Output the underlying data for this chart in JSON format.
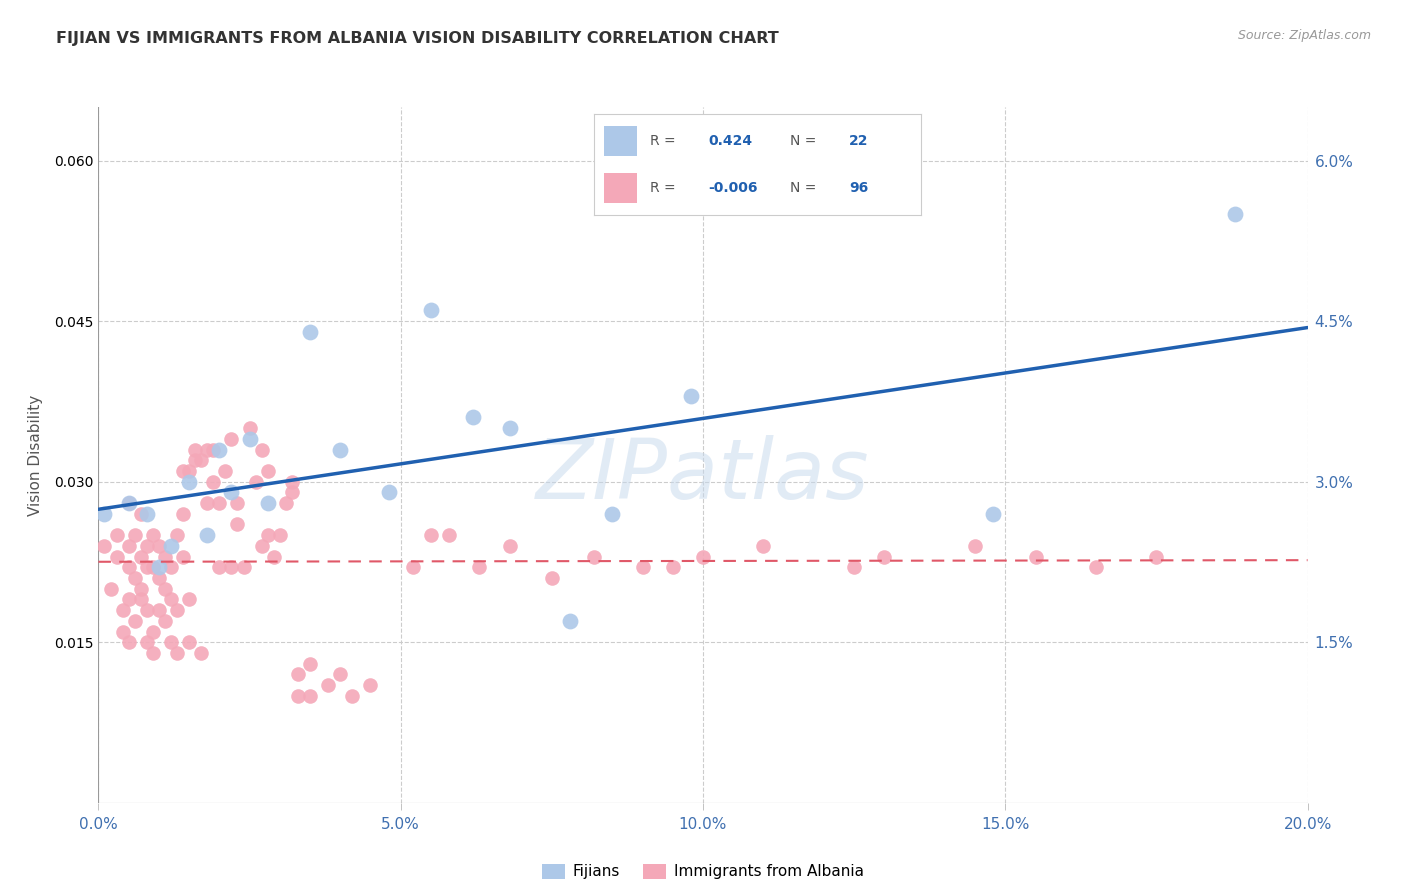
{
  "title": "FIJIAN VS IMMIGRANTS FROM ALBANIA VISION DISABILITY CORRELATION CHART",
  "source": "Source: ZipAtlas.com",
  "ylabel": "Vision Disability",
  "xlim": [
    0.0,
    0.2
  ],
  "ylim": [
    0.0,
    0.065
  ],
  "xticks": [
    0.0,
    0.05,
    0.1,
    0.15,
    0.2
  ],
  "yticks_right": [
    0.015,
    0.03,
    0.045,
    0.06
  ],
  "ytick_labels_right": [
    "1.5%",
    "3.0%",
    "4.5%",
    "6.0%"
  ],
  "xtick_labels": [
    "0.0%",
    "5.0%",
    "10.0%",
    "15.0%",
    "20.0%"
  ],
  "fijian_R": 0.424,
  "fijian_N": 22,
  "albania_R": -0.006,
  "albania_N": 96,
  "fijian_color": "#adc8e8",
  "albania_color": "#f4a8b8",
  "fijian_line_color": "#2060b0",
  "albania_line_color": "#e05868",
  "legend_label_fijian": "Fijians",
  "legend_label_albania": "Immigrants from Albania",
  "fijian_x": [
    0.001,
    0.005,
    0.008,
    0.01,
    0.012,
    0.015,
    0.018,
    0.02,
    0.022,
    0.025,
    0.028,
    0.035,
    0.04,
    0.048,
    0.055,
    0.062,
    0.068,
    0.078,
    0.085,
    0.098,
    0.148,
    0.188
  ],
  "fijian_y": [
    0.027,
    0.028,
    0.027,
    0.022,
    0.024,
    0.03,
    0.025,
    0.033,
    0.029,
    0.034,
    0.028,
    0.044,
    0.033,
    0.029,
    0.046,
    0.036,
    0.035,
    0.017,
    0.027,
    0.038,
    0.027,
    0.055
  ],
  "albania_x": [
    0.001,
    0.002,
    0.003,
    0.003,
    0.004,
    0.004,
    0.005,
    0.005,
    0.005,
    0.005,
    0.005,
    0.006,
    0.006,
    0.006,
    0.007,
    0.007,
    0.007,
    0.007,
    0.008,
    0.008,
    0.008,
    0.008,
    0.009,
    0.009,
    0.009,
    0.009,
    0.01,
    0.01,
    0.01,
    0.011,
    0.011,
    0.011,
    0.012,
    0.012,
    0.012,
    0.013,
    0.013,
    0.013,
    0.014,
    0.014,
    0.014,
    0.015,
    0.015,
    0.015,
    0.016,
    0.016,
    0.017,
    0.017,
    0.018,
    0.018,
    0.019,
    0.019,
    0.02,
    0.02,
    0.021,
    0.022,
    0.022,
    0.023,
    0.023,
    0.024,
    0.025,
    0.026,
    0.027,
    0.027,
    0.028,
    0.028,
    0.029,
    0.03,
    0.031,
    0.032,
    0.032,
    0.033,
    0.033,
    0.035,
    0.035,
    0.038,
    0.04,
    0.042,
    0.045,
    0.052,
    0.055,
    0.058,
    0.063,
    0.068,
    0.075,
    0.082,
    0.09,
    0.095,
    0.1,
    0.11,
    0.125,
    0.13,
    0.145,
    0.155,
    0.165,
    0.175
  ],
  "albania_y": [
    0.024,
    0.02,
    0.023,
    0.025,
    0.016,
    0.018,
    0.024,
    0.022,
    0.019,
    0.028,
    0.015,
    0.017,
    0.021,
    0.025,
    0.023,
    0.019,
    0.02,
    0.027,
    0.015,
    0.022,
    0.024,
    0.018,
    0.025,
    0.014,
    0.016,
    0.022,
    0.018,
    0.021,
    0.024,
    0.017,
    0.02,
    0.023,
    0.015,
    0.019,
    0.022,
    0.014,
    0.018,
    0.025,
    0.023,
    0.027,
    0.031,
    0.015,
    0.019,
    0.031,
    0.032,
    0.033,
    0.014,
    0.032,
    0.033,
    0.028,
    0.03,
    0.033,
    0.022,
    0.028,
    0.031,
    0.022,
    0.034,
    0.026,
    0.028,
    0.022,
    0.035,
    0.03,
    0.033,
    0.024,
    0.025,
    0.031,
    0.023,
    0.025,
    0.028,
    0.03,
    0.029,
    0.01,
    0.012,
    0.013,
    0.01,
    0.011,
    0.012,
    0.01,
    0.011,
    0.022,
    0.025,
    0.025,
    0.022,
    0.024,
    0.021,
    0.023,
    0.022,
    0.022,
    0.023,
    0.024,
    0.022,
    0.023,
    0.024,
    0.023,
    0.022,
    0.023
  ],
  "watermark": "ZIPatlas",
  "background_color": "#ffffff",
  "grid_color": "#cccccc"
}
